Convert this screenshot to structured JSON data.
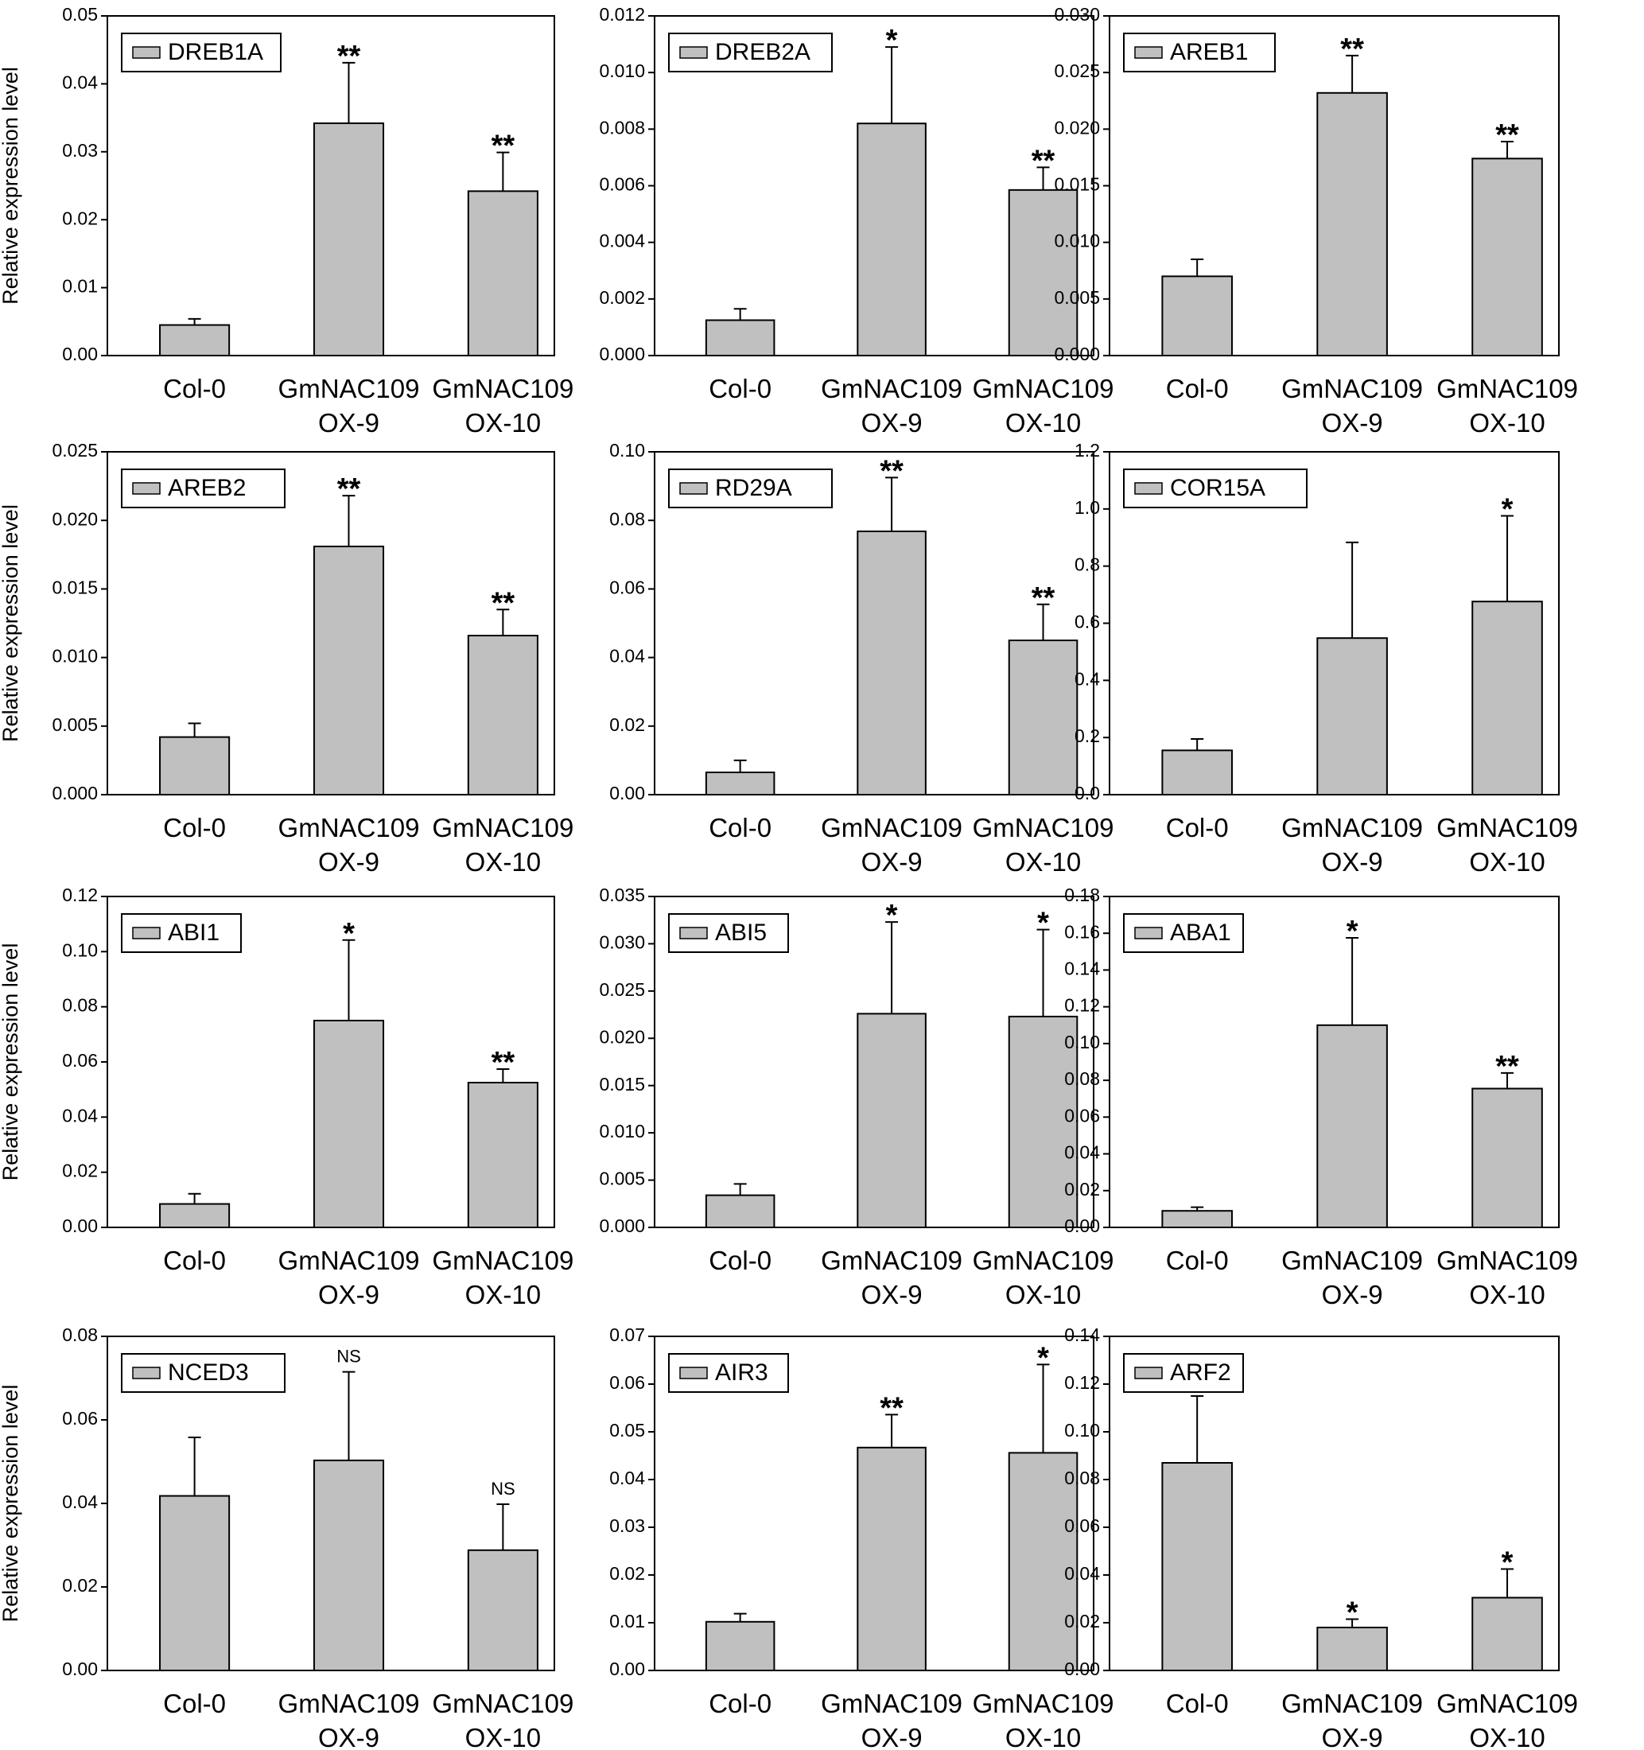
{
  "figure": {
    "ylabel": "Relative expression level"
  },
  "colors": {
    "bar": "#c0c0c0",
    "stroke": "#000000"
  },
  "chart_data": [
    {
      "type": "bar",
      "gene": "DREB1A",
      "ylabel": "Relative expression level",
      "categories": [
        "Col-0",
        "GmNAC109 OX-9",
        "GmNAC109 OX-10"
      ],
      "values": [
        0.0045,
        0.0342,
        0.0242
      ],
      "errors": [
        0.0009,
        0.0089,
        0.0057
      ],
      "significance": [
        "",
        "**",
        "**"
      ],
      "ylim": [
        0,
        0.05
      ],
      "ticks": [
        "0.00",
        "0.01",
        "0.02",
        "0.03",
        "0.04",
        "0.05"
      ]
    },
    {
      "type": "bar",
      "gene": "DREB2A",
      "ylabel": "",
      "categories": [
        "Col-0",
        "GmNAC109 OX-9",
        "GmNAC109 OX-10"
      ],
      "values": [
        0.00125,
        0.0082,
        0.00585
      ],
      "errors": [
        0.0004,
        0.0027,
        0.0008
      ],
      "significance": [
        "",
        "*",
        "**"
      ],
      "ylim": [
        0,
        0.012
      ],
      "ticks": [
        "0.000",
        "0.002",
        "0.004",
        "0.006",
        "0.008",
        "0.010",
        "0.012"
      ]
    },
    {
      "type": "bar",
      "gene": "AREB1",
      "ylabel": "",
      "categories": [
        "Col-0",
        "GmNAC109 OX-9",
        "GmNAC109 OX-10"
      ],
      "values": [
        0.007,
        0.0232,
        0.0174
      ],
      "errors": [
        0.0015,
        0.0033,
        0.0015
      ],
      "significance": [
        "",
        "**",
        "**"
      ],
      "ylim": [
        0,
        0.03
      ],
      "ticks": [
        "0.000",
        "0.005",
        "0.010",
        "0.015",
        "0.020",
        "0.025",
        "0.030"
      ]
    },
    {
      "type": "bar",
      "gene": "AREB2",
      "ylabel": "Relative expression level",
      "categories": [
        "Col-0",
        "GmNAC109 OX-9",
        "GmNAC109 OX-10"
      ],
      "values": [
        0.0042,
        0.0181,
        0.0116
      ],
      "errors": [
        0.001,
        0.0037,
        0.0019
      ],
      "significance": [
        "",
        "**",
        "**"
      ],
      "ylim": [
        0,
        0.025
      ],
      "ticks": [
        "0.000",
        "0.005",
        "0.010",
        "0.015",
        "0.020",
        "0.025"
      ]
    },
    {
      "type": "bar",
      "gene": "RD29A",
      "ylabel": "",
      "categories": [
        "Col-0",
        "GmNAC109 OX-9",
        "GmNAC109 OX-10"
      ],
      "values": [
        0.0065,
        0.0768,
        0.045
      ],
      "errors": [
        0.0035,
        0.0157,
        0.0105
      ],
      "significance": [
        "",
        "**",
        "**"
      ],
      "ylim": [
        0,
        0.1
      ],
      "ticks": [
        "0.00",
        "0.02",
        "0.04",
        "0.06",
        "0.08",
        "0.10"
      ]
    },
    {
      "type": "bar",
      "gene": "COR15A",
      "ylabel": "",
      "categories": [
        "Col-0",
        "GmNAC109 OX-9",
        "GmNAC109 OX-10"
      ],
      "values": [
        0.155,
        0.548,
        0.676
      ],
      "errors": [
        0.04,
        0.335,
        0.3
      ],
      "significance": [
        "",
        "",
        "*"
      ],
      "ylim": [
        0,
        1.2
      ],
      "ticks": [
        "0.0",
        "0.2",
        "0.4",
        "0.6",
        "0.8",
        "1.0",
        "1.2"
      ]
    },
    {
      "type": "bar",
      "gene": "ABI1",
      "ylabel": "Relative expression level",
      "categories": [
        "Col-0",
        "GmNAC109 OX-9",
        "GmNAC109 OX-10"
      ],
      "values": [
        0.0085,
        0.075,
        0.0525
      ],
      "errors": [
        0.0037,
        0.0292,
        0.0049
      ],
      "significance": [
        "",
        "*",
        "**"
      ],
      "ylim": [
        0,
        0.12
      ],
      "ticks": [
        "0.00",
        "0.02",
        "0.04",
        "0.06",
        "0.08",
        "0.10",
        "0.12"
      ]
    },
    {
      "type": "bar",
      "gene": "ABI5",
      "ylabel": "",
      "categories": [
        "Col-0",
        "GmNAC109 OX-9",
        "GmNAC109 OX-10"
      ],
      "values": [
        0.0034,
        0.0226,
        0.0223
      ],
      "errors": [
        0.0012,
        0.0097,
        0.0092
      ],
      "significance": [
        "",
        "*",
        "*"
      ],
      "ylim": [
        0,
        0.035
      ],
      "ticks": [
        "0.000",
        "0.005",
        "0.010",
        "0.015",
        "0.020",
        "0.025",
        "0.030",
        "0.035"
      ]
    },
    {
      "type": "bar",
      "gene": "ABA1",
      "ylabel": "",
      "categories": [
        "Col-0",
        "GmNAC109 OX-9",
        "GmNAC109 OX-10"
      ],
      "values": [
        0.009,
        0.11,
        0.0755
      ],
      "errors": [
        0.002,
        0.0475,
        0.0085
      ],
      "significance": [
        "",
        "*",
        "**"
      ],
      "ylim": [
        0,
        0.18
      ],
      "ticks": [
        "0.00",
        "0.02",
        "0.04",
        "0.06",
        "0.08",
        "0.10",
        "0.12",
        "0.14",
        "0.16",
        "0.18"
      ]
    },
    {
      "type": "bar",
      "gene": "NCED3",
      "ylabel": "Relative expression level",
      "categories": [
        "Col-0",
        "GmNAC109 OX-9",
        "GmNAC109 OX-10"
      ],
      "values": [
        0.0418,
        0.0503,
        0.0288
      ],
      "errors": [
        0.014,
        0.0212,
        0.011
      ],
      "significance": [
        "",
        "NS",
        "NS"
      ],
      "ylim": [
        0,
        0.08
      ],
      "ticks": [
        "0.00",
        "0.02",
        "0.04",
        "0.06",
        "0.08"
      ]
    },
    {
      "type": "bar",
      "gene": "AIR3",
      "ylabel": "",
      "categories": [
        "Col-0",
        "GmNAC109 OX-9",
        "GmNAC109 OX-10"
      ],
      "values": [
        0.0102,
        0.0467,
        0.0456
      ],
      "errors": [
        0.0017,
        0.0069,
        0.0185
      ],
      "significance": [
        "",
        "**",
        "*"
      ],
      "ylim": [
        0,
        0.07
      ],
      "ticks": [
        "0.00",
        "0.01",
        "0.02",
        "0.03",
        "0.04",
        "0.05",
        "0.06",
        "0.07"
      ]
    },
    {
      "type": "bar",
      "gene": "ARF2",
      "ylabel": "",
      "categories": [
        "Col-0",
        "GmNAC109 OX-9",
        "GmNAC109 OX-10"
      ],
      "values": [
        0.087,
        0.018,
        0.0305
      ],
      "errors": [
        0.028,
        0.0035,
        0.012
      ],
      "significance": [
        "",
        "*",
        "*"
      ],
      "ylim": [
        0,
        0.14
      ],
      "ticks": [
        "0.00",
        "0.02",
        "0.04",
        "0.06",
        "0.08",
        "0.10",
        "0.12",
        "0.14"
      ]
    }
  ]
}
